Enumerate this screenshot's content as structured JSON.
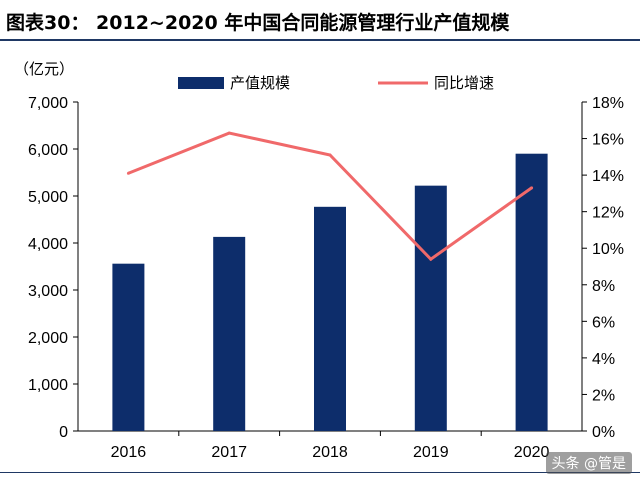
{
  "header": {
    "title": "图表30：  2012~2020 年中国合同能源管理行业产值规模"
  },
  "watermark": "头条 @管是",
  "chart_data": {
    "type": "bar",
    "unit_label": "（亿元）",
    "categories": [
      "2016",
      "2017",
      "2018",
      "2019",
      "2020"
    ],
    "series": [
      {
        "name": "产值规模",
        "kind": "bar",
        "axis": "left",
        "values": [
          3560,
          4130,
          4770,
          5220,
          5900
        ]
      },
      {
        "name": "同比增速",
        "kind": "line",
        "axis": "right",
        "values": [
          14.1,
          16.3,
          15.1,
          9.4,
          13.3
        ]
      }
    ],
    "y_left": {
      "ylim": [
        0,
        7000
      ],
      "ticks": [
        0,
        1000,
        2000,
        3000,
        4000,
        5000,
        6000,
        7000
      ],
      "tick_labels": [
        "0",
        "1,000",
        "2,000",
        "3,000",
        "4,000",
        "5,000",
        "6,000",
        "7,000"
      ]
    },
    "y_right": {
      "ylim": [
        0,
        18
      ],
      "ticks": [
        0,
        2,
        4,
        6,
        8,
        10,
        12,
        14,
        16,
        18
      ],
      "tick_labels": [
        "0%",
        "2%",
        "4%",
        "6%",
        "8%",
        "10%",
        "12%",
        "14%",
        "16%",
        "18%"
      ]
    },
    "legend_position": "top-center",
    "grid": false,
    "colors": {
      "bar": "#0d2d6b",
      "line": "#f0696a"
    }
  }
}
